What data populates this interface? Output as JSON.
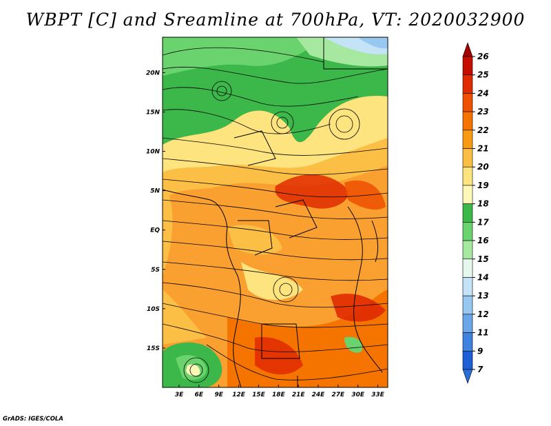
{
  "title": "WBPT [C] and Sreamline at 700hPa, VT: 2020032900",
  "credit": "GrADS: IGES/COLA",
  "map": {
    "lon_ticks": [
      "3E",
      "6E",
      "9E",
      "12E",
      "15E",
      "18E",
      "21E",
      "24E",
      "27E",
      "30E",
      "33E"
    ],
    "lat_ticks": [
      "20N",
      "15N",
      "10N",
      "5N",
      "EQ",
      "5S",
      "10S",
      "15S"
    ],
    "lon_range": [
      0.5,
      34.5
    ],
    "lat_range": [
      -20.0,
      24.5
    ]
  },
  "colorbar": {
    "levels": [
      "26",
      "25",
      "24",
      "23",
      "22",
      "21",
      "20",
      "19",
      "18",
      "17",
      "16",
      "15",
      "14",
      "13",
      "12",
      "11",
      "9",
      "7"
    ],
    "colors": [
      "#a50000",
      "#c40f00",
      "#e02a00",
      "#ef4f00",
      "#f57400",
      "#f99a14",
      "#fbbf45",
      "#fde47e",
      "#fff7b8",
      "#3cb84a",
      "#6bd36e",
      "#a6e8a0",
      "#e6f7ee",
      "#c4e3f7",
      "#98c8f0",
      "#6aa6e8",
      "#3f82e0",
      "#1f5fd6"
    ],
    "bottom_color": "#2a6cd8"
  }
}
